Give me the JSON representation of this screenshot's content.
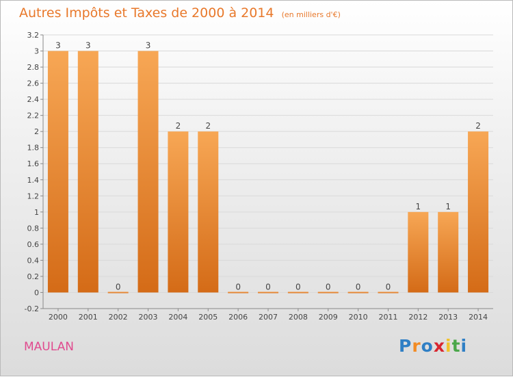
{
  "title": "Autres Impôts et Taxes de 2000 à 2014",
  "subtitle": "(en milliers d'€)",
  "commune": "MAULAN",
  "logo": {
    "letters": [
      "P",
      "r",
      "o",
      "x",
      "i",
      "t",
      "i"
    ],
    "colors": [
      "#2f7fc5",
      "#f28b24",
      "#2f7fc5",
      "#d8262f",
      "#f2c22b",
      "#4aa74a",
      "#2f7fc5"
    ]
  },
  "colors": {
    "title": "#e8782a",
    "bar_light": "#f7a755",
    "bar_dark": "#d46b17",
    "commune": "#e04a8e"
  },
  "chart_data": {
    "type": "bar",
    "categories": [
      "2000",
      "2001",
      "2002",
      "2003",
      "2004",
      "2005",
      "2006",
      "2007",
      "2008",
      "2009",
      "2010",
      "2011",
      "2012",
      "2013",
      "2014"
    ],
    "values": [
      3,
      3,
      0,
      3,
      2,
      2,
      0,
      0,
      0,
      0,
      0,
      0,
      1,
      1,
      2
    ],
    "data_labels": [
      "3",
      "3",
      "0",
      "3",
      "2",
      "2",
      "0",
      "0",
      "0",
      "0",
      "0",
      "0",
      "1",
      "1",
      "2"
    ],
    "ylim": [
      -0.2,
      3.2
    ],
    "yticks": [
      -0.2,
      0,
      0.2,
      0.4,
      0.6,
      0.8,
      1,
      1.2,
      1.4,
      1.6,
      1.8,
      2,
      2.2,
      2.4,
      2.6,
      2.8,
      3,
      3.2
    ],
    "ytick_labels": [
      "-0.2",
      "0",
      "0.2",
      "0.4",
      "0.6",
      "0.8",
      "1",
      "1.2",
      "1.4",
      "1.6",
      "1.8",
      "2",
      "2.2",
      "2.4",
      "2.6",
      "2.8",
      "3",
      "3.2"
    ],
    "grid": true,
    "title": "Autres Impôts et Taxes de 2000 à 2014",
    "xlabel": "",
    "ylabel": ""
  }
}
